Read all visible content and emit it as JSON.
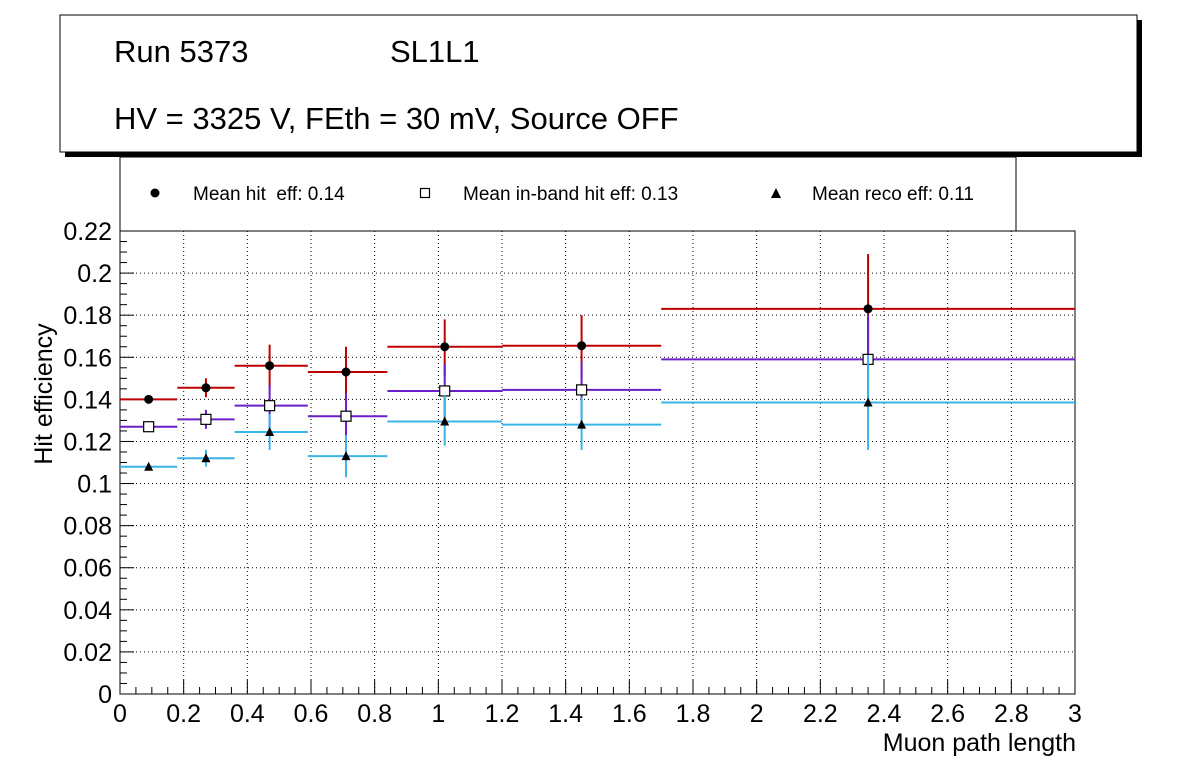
{
  "header": {
    "run_label": "Run 5373",
    "chamber_label": "SL1L1",
    "conditions_label": "HV = 3325 V, FEth = 30 mV, Source OFF"
  },
  "chart_data": {
    "type": "scatter",
    "title": "",
    "xlabel": "Muon path length",
    "ylabel": "Hit efficiency",
    "xlim": [
      0,
      3
    ],
    "ylim": [
      0,
      0.22
    ],
    "grid": true,
    "legend_position": "top",
    "x_ticks": [
      "0",
      "0.2",
      "0.4",
      "0.6",
      "0.8",
      "1",
      "1.2",
      "1.4",
      "1.6",
      "1.8",
      "2",
      "2.2",
      "2.4",
      "2.6",
      "2.8",
      "3"
    ],
    "y_ticks": [
      "0",
      "0.02",
      "0.04",
      "0.06",
      "0.08",
      "0.1",
      "0.12",
      "0.14",
      "0.16",
      "0.18",
      "0.2",
      "0.22"
    ],
    "bins": {
      "x_low": [
        0.0,
        0.18,
        0.36,
        0.59,
        0.84,
        1.2,
        1.7
      ],
      "x_high": [
        0.18,
        0.36,
        0.59,
        0.84,
        1.2,
        1.7,
        3.0
      ],
      "x_center": [
        0.09,
        0.27,
        0.47,
        0.71,
        1.02,
        1.45,
        2.35
      ]
    },
    "series": [
      {
        "name": "Mean hit  eff: 0.14",
        "marker": "filled-circle",
        "color": "#c00000",
        "y": [
          0.14,
          0.1455,
          0.156,
          0.153,
          0.165,
          0.1655,
          0.183
        ],
        "y_low": [
          0.139,
          0.141,
          0.145,
          0.141,
          0.151,
          0.15,
          0.158
        ],
        "y_high": [
          0.141,
          0.15,
          0.166,
          0.165,
          0.178,
          0.18,
          0.209
        ]
      },
      {
        "name": "Mean in-band hit eff: 0.13",
        "marker": "open-square",
        "color": "#6a1fc8",
        "y": [
          0.127,
          0.1305,
          0.137,
          0.132,
          0.144,
          0.1445,
          0.159
        ],
        "y_low": [
          0.126,
          0.126,
          0.126,
          0.121,
          0.131,
          0.131,
          0.138
        ],
        "y_high": [
          0.128,
          0.135,
          0.147,
          0.143,
          0.157,
          0.158,
          0.18
        ]
      },
      {
        "name": "Mean reco eff: 0.11",
        "marker": "filled-triangle",
        "color": "#3ab4e6",
        "y": [
          0.108,
          0.112,
          0.1245,
          0.113,
          0.1295,
          0.128,
          0.1385
        ],
        "y_low": [
          0.107,
          0.108,
          0.116,
          0.103,
          0.118,
          0.116,
          0.116
        ],
        "y_high": [
          0.109,
          0.116,
          0.133,
          0.123,
          0.142,
          0.141,
          0.161
        ]
      }
    ]
  }
}
